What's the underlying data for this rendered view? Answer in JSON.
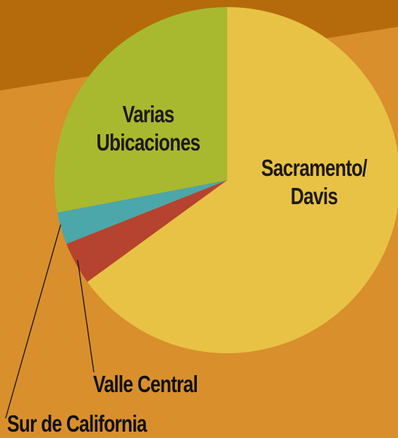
{
  "chart_data": {
    "type": "pie",
    "categories": [
      "Sacramento/ Davis",
      "Valle Central",
      "Sur de California",
      "Varias Ubicaciones"
    ],
    "values": [
      65,
      4,
      3,
      28
    ],
    "colors": [
      "#e8c245",
      "#b5432f",
      "#4ba7a9",
      "#a8b92f"
    ]
  }
}
